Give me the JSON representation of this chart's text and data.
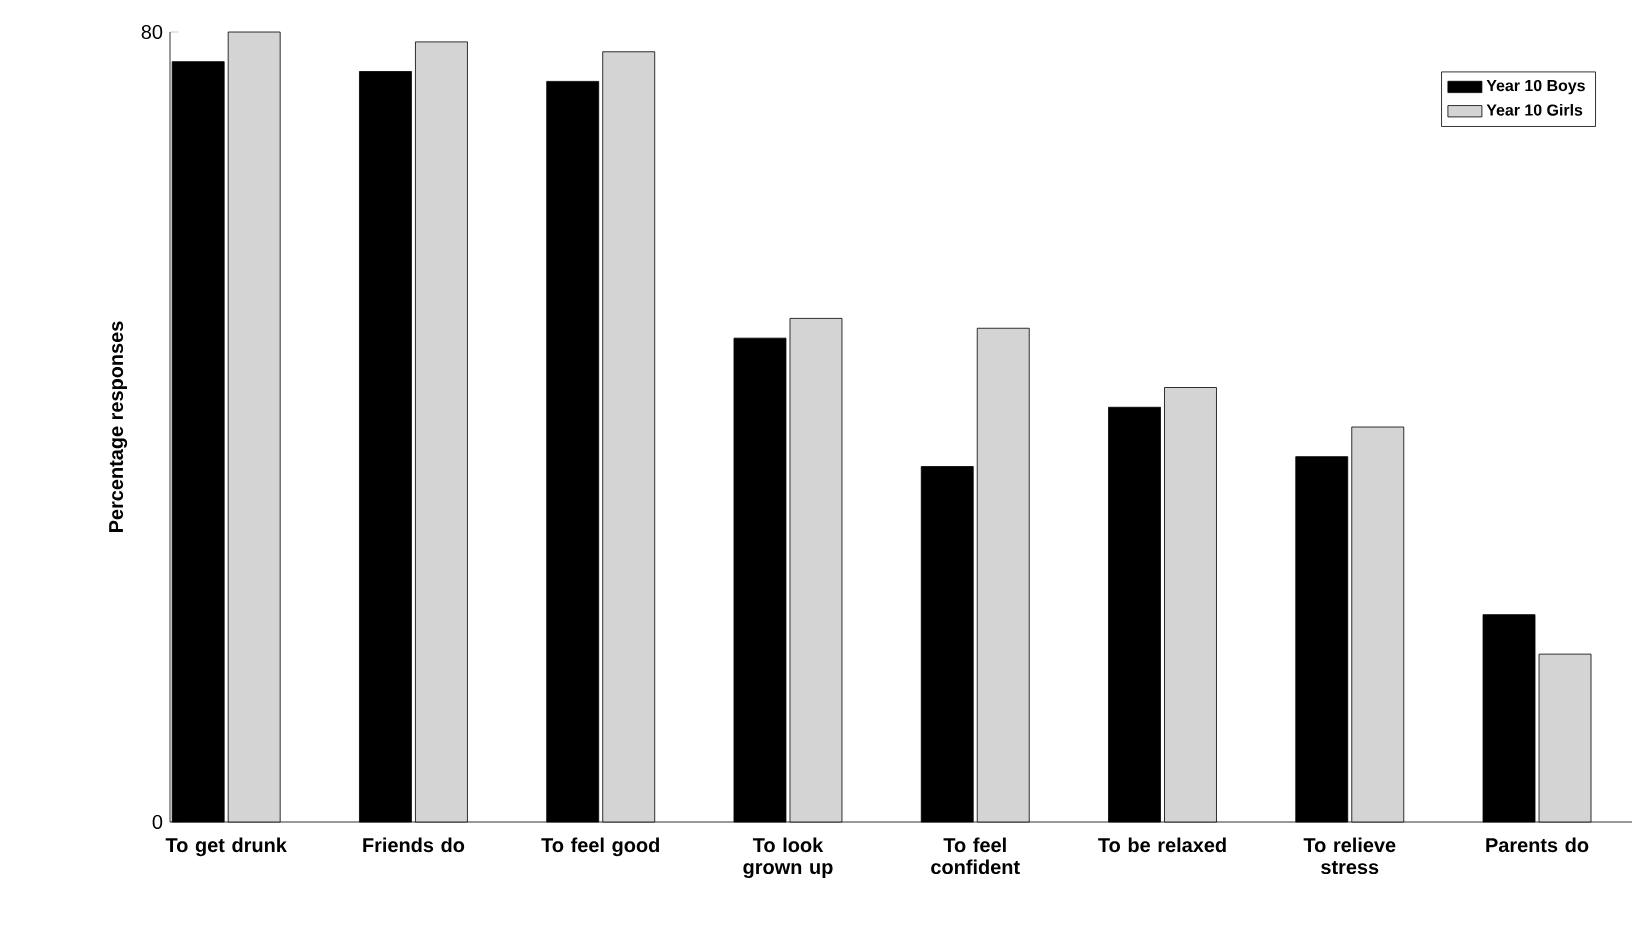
{
  "chart_data": {
    "type": "bar",
    "ylabel": "Percentage responses",
    "categories": [
      "To get drunk",
      "Friends do",
      "To feel good",
      "To look grown up",
      "To feel confident",
      "To be relaxed",
      "To relieve stress",
      "Parents do"
    ],
    "series": [
      {
        "name": "Year 10 Boys",
        "color": "#000000",
        "values": [
          77,
          76,
          75,
          49,
          36,
          42,
          37,
          21
        ]
      },
      {
        "name": "Year 10 Girls",
        "color": "#d4d4d4",
        "values": [
          80,
          79,
          78,
          51,
          50,
          44,
          40,
          17
        ]
      }
    ],
    "ylim": [
      0,
      80
    ],
    "yticks": [
      0,
      80
    ],
    "grid": false,
    "legend": "top right"
  }
}
